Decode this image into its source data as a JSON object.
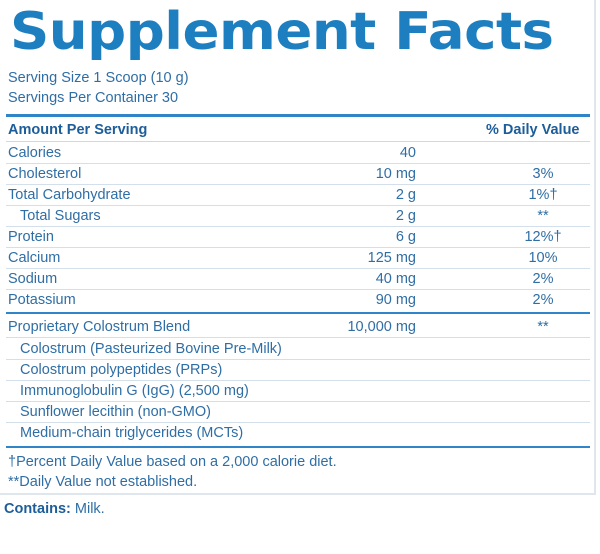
{
  "title": "Supplement Facts",
  "serving_size": "Serving Size 1 Scoop (10 g)",
  "servings_per_container": "Servings Per Container 30",
  "header": {
    "amount_per_serving": "Amount Per Serving",
    "daily_value": "% Daily Value"
  },
  "nutrients": [
    {
      "name": "Calories",
      "amount": "40",
      "dv": ""
    },
    {
      "name": "Cholesterol",
      "amount": "10 mg",
      "dv": "3%"
    },
    {
      "name": "Total Carbohydrate",
      "amount": "2 g",
      "dv": "1%†"
    },
    {
      "name": "Total Sugars",
      "amount": "2 g",
      "dv": "**"
    },
    {
      "name": "Protein",
      "amount": "6 g",
      "dv": "12%†"
    },
    {
      "name": "Calcium",
      "amount": "125 mg",
      "dv": "10%"
    },
    {
      "name": "Sodium",
      "amount": "40 mg",
      "dv": "2%"
    },
    {
      "name": "Potassium",
      "amount": "90 mg",
      "dv": "2%"
    }
  ],
  "blend": {
    "name": "Proprietary Colostrum Blend",
    "amount": "10,000 mg",
    "dv": "**",
    "ingredients": [
      "Colostrum (Pasteurized Bovine Pre-Milk)",
      "Colostrum polypeptides (PRPs)",
      "Immunoglobulin G (IgG) (2,500 mg)",
      "Sunflower lecithin (non-GMO)",
      "Medium-chain triglycerides (MCTs)"
    ]
  },
  "footnotes": [
    "†Percent Daily Value based on a 2,000 calorie diet.",
    "**Daily Value not established."
  ],
  "contains": {
    "label": "Contains:",
    "value": " Milk."
  }
}
